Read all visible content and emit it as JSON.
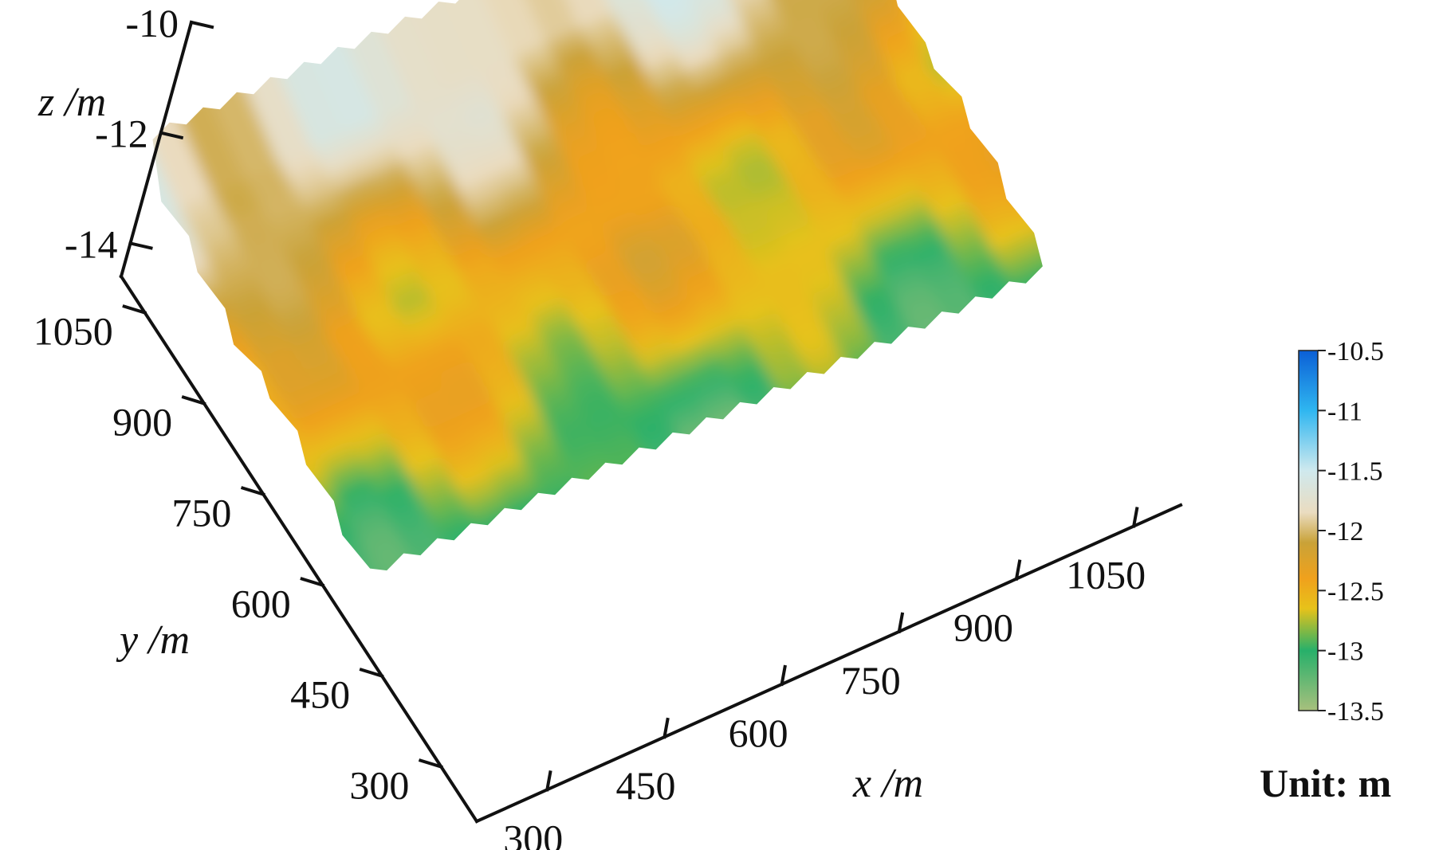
{
  "chart_data": {
    "type": "surface",
    "title": "",
    "x_axis": {
      "label": "x /m",
      "ticks": [
        300,
        450,
        600,
        750,
        900,
        1050
      ],
      "range": [
        210,
        1110
      ]
    },
    "y_axis": {
      "label": "y /m",
      "ticks": [
        300,
        450,
        600,
        750,
        900,
        1050
      ],
      "range": [
        210,
        1110
      ]
    },
    "z_axis": {
      "label": "z /m",
      "ticks": [
        -10,
        -12,
        -14
      ],
      "range": [
        -14.6,
        -10
      ]
    },
    "colorbar": {
      "ticks": [
        "-10.5",
        "-11",
        "-11.5",
        "-12",
        "-12.5",
        "-13",
        "-13.5"
      ],
      "range": [
        -13.5,
        -10.5
      ],
      "unit_label": "Unit: m",
      "colors": [
        {
          "value": -10.5,
          "color": "#0b5fd6"
        },
        {
          "value": -11.0,
          "color": "#2fb6f0"
        },
        {
          "value": -11.5,
          "color": "#cfe9ee"
        },
        {
          "value": -11.85,
          "color": "#eadcc0"
        },
        {
          "value": -12.1,
          "color": "#c9a238"
        },
        {
          "value": -12.4,
          "color": "#f0a11c"
        },
        {
          "value": -12.65,
          "color": "#e7c21a"
        },
        {
          "value": -13.0,
          "color": "#27b06a"
        },
        {
          "value": -13.5,
          "color": "#a8c07d"
        }
      ]
    },
    "surface": {
      "x_extent": [
        220,
        1080
      ],
      "y_extent": [
        500,
        1050
      ],
      "depth_band_along_y": [
        {
          "y": 500,
          "z": -13.1
        },
        {
          "y": 580,
          "z": -12.9
        },
        {
          "y": 660,
          "z": -12.6
        },
        {
          "y": 740,
          "z": -12.45
        },
        {
          "y": 820,
          "z": -12.5
        },
        {
          "y": 900,
          "z": -12.2
        },
        {
          "y": 980,
          "z": -11.9
        },
        {
          "y": 1050,
          "z": -11.75
        }
      ]
    }
  }
}
